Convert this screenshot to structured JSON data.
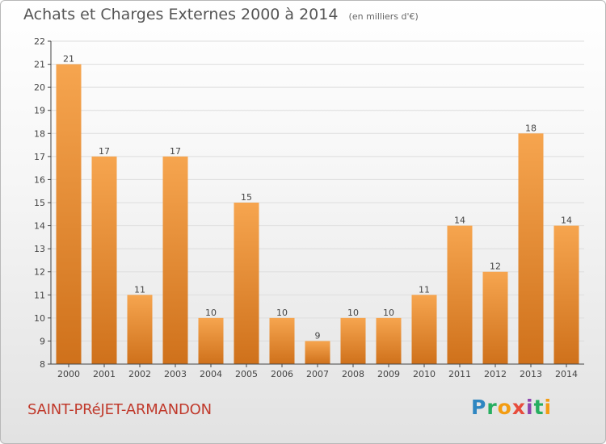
{
  "header": {
    "title": "Achats et Charges Externes 2000 à 2014",
    "unit": "(en milliers d'€)"
  },
  "footer": {
    "town": "SAINT-PRéJET-ARMANDON",
    "brand": "Proxiti"
  },
  "colors": {
    "bar_top": "#f6a54f",
    "bar_bottom": "#cf711b",
    "axis": "#444444",
    "grid": "#dddddd",
    "title": "#555555",
    "town": "#c0392b"
  },
  "chart_data": {
    "type": "bar",
    "title": "Achats et Charges Externes 2000 à 2014",
    "subtitle": "(en milliers d'€)",
    "xlabel": "",
    "ylabel": "",
    "categories": [
      "2000",
      "2001",
      "2002",
      "2003",
      "2004",
      "2005",
      "2006",
      "2007",
      "2008",
      "2009",
      "2010",
      "2011",
      "2012",
      "2013",
      "2014"
    ],
    "values": [
      21,
      17,
      11,
      17,
      10,
      15,
      10,
      9,
      10,
      10,
      11,
      14,
      12,
      18,
      14
    ],
    "ylim": [
      8,
      22
    ],
    "yticks": [
      8,
      9,
      10,
      11,
      12,
      13,
      14,
      15,
      16,
      17,
      18,
      19,
      20,
      21,
      22
    ],
    "grid": true,
    "data_labels": true
  }
}
